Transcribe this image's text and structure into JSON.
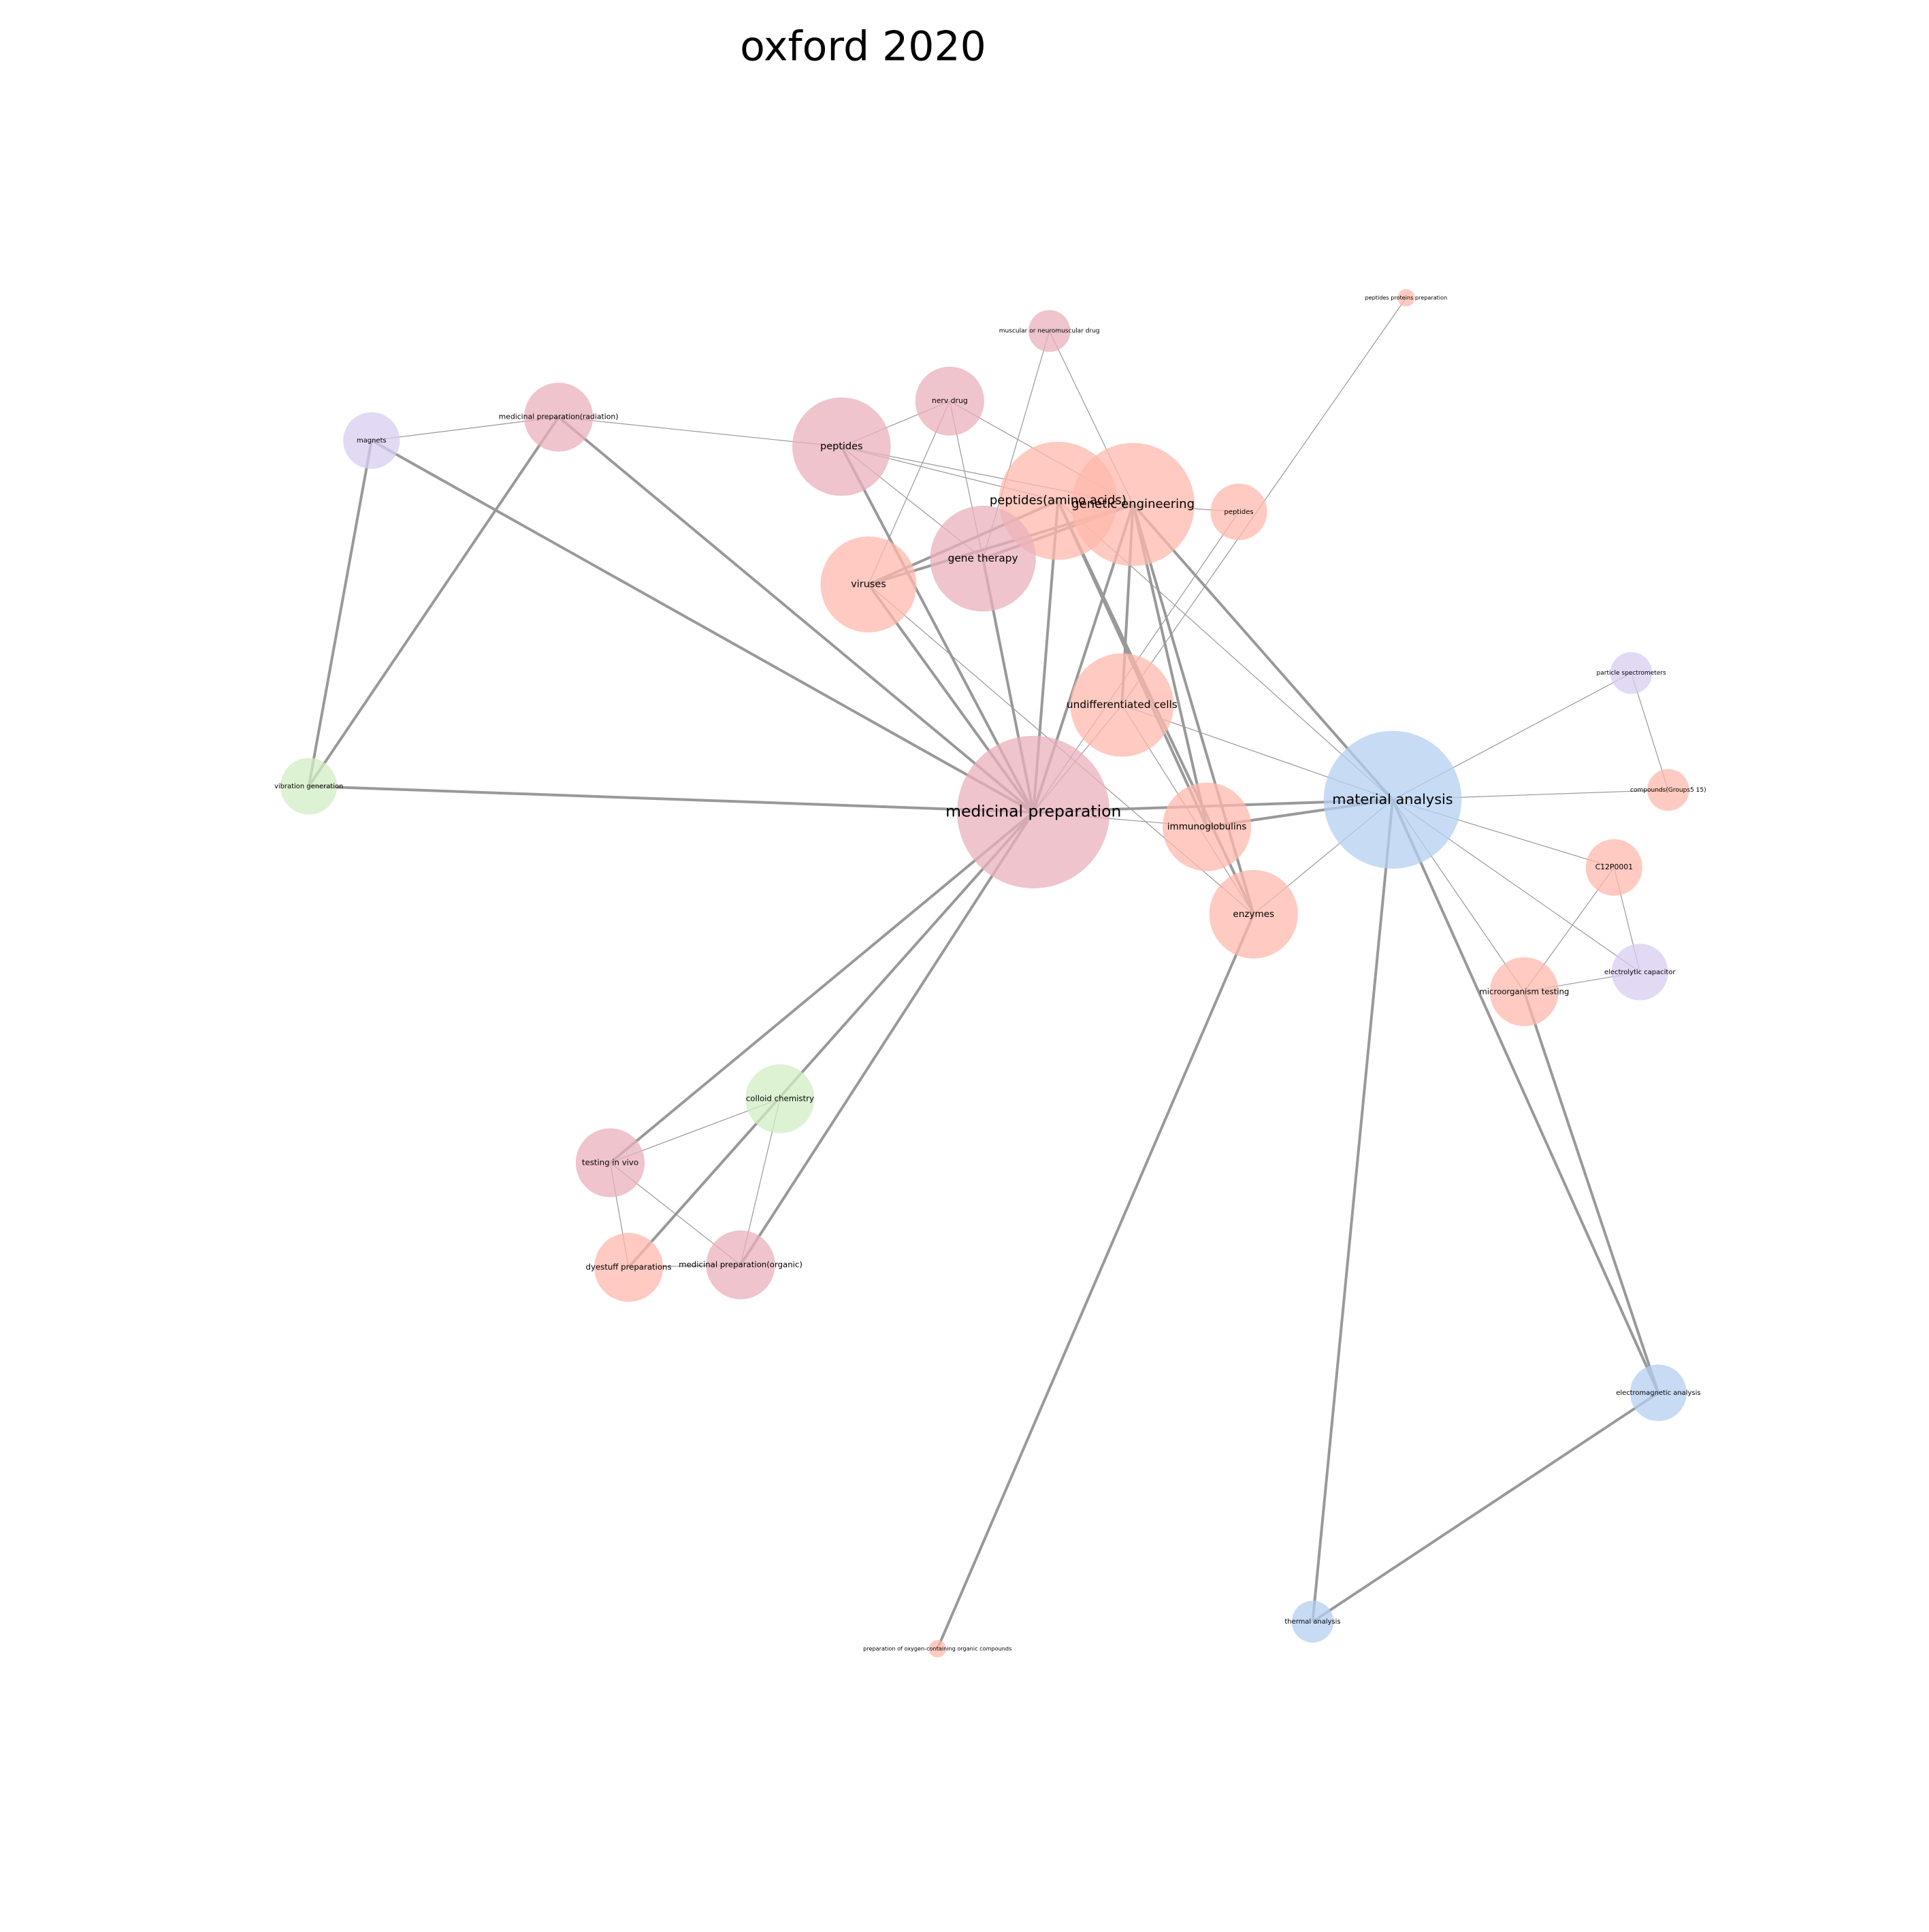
{
  "title": "oxford 2020",
  "nodes": [
    {
      "label": "medicinal preparation"
    },
    {
      "label": "material analysis"
    },
    {
      "label": "genetic engineering"
    },
    {
      "label": "peptides(amino acids)"
    },
    {
      "label": "undifferentiated cells"
    },
    {
      "label": "gene therapy"
    },
    {
      "label": "viruses"
    },
    {
      "label": "peptides"
    },
    {
      "label": "nerv drug"
    },
    {
      "label": "muscular or neuromuscular drug"
    },
    {
      "label": "peptides proteins preparation"
    },
    {
      "label": "peptides"
    },
    {
      "label": "medicinal preparation(radiation)"
    },
    {
      "label": "magnets"
    },
    {
      "label": "vibration generation"
    },
    {
      "label": "immunoglobulins"
    },
    {
      "label": "enzymes"
    },
    {
      "label": "particle spectrometers"
    },
    {
      "label": "compounds(Groups5 15)"
    },
    {
      "label": "C12P0001"
    },
    {
      "label": "electrolytic capacitor"
    },
    {
      "label": "microorganism testing"
    },
    {
      "label": "electromagnetic analysis"
    },
    {
      "label": "thermal analysis"
    },
    {
      "label": "preparation of oxygen-containing organic compounds"
    },
    {
      "label": "colloid chemistry"
    },
    {
      "label": "testing in vivo"
    },
    {
      "label": "dyestuff preparations"
    },
    {
      "label": "medicinal preparation(organic)"
    }
  ]
}
